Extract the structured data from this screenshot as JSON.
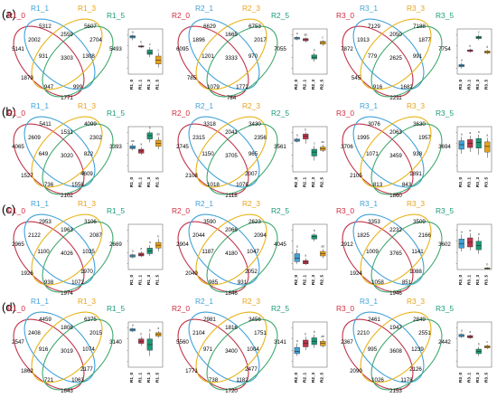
{
  "colors": {
    "set_a": "#d12a3e",
    "set_b": "#3fa1d8",
    "set_c": "#e8a319",
    "set_d": "#1b9a78",
    "ellipse_a": "#c0334a",
    "ellipse_b": "#3fa1d8",
    "ellipse_c": "#e8b318",
    "ellipse_d": "#41a86f",
    "box_palette": [
      "#3fa1d8",
      "#c0334a",
      "#1b9a78",
      "#e8a319"
    ]
  },
  "rows": [
    {
      "label": "(a)",
      "panels": [
        {
          "sets": [
            "R1_0",
            "R1_1",
            "R1_3",
            "R1_5"
          ],
          "counts": {
            "a": "5141",
            "b": "5312",
            "c": "5607",
            "d": "5493",
            "ab": "2002",
            "bc": "2559",
            "cd": "1308",
            "ad": "1879",
            "abc": "931",
            "bcd": "2704",
            "abd": "947",
            "acd": "999",
            "abcd": "3303",
            "ac": "3303",
            "bd": "1771"
          },
          "mid_counts": [
            "2002",
            "2559",
            "2704",
            "931",
            "3303",
            "1308",
            "1879",
            "947",
            "999",
            "1771"
          ],
          "boxplot": {
            "categories": [
              "R1_0",
              "R1_1",
              "R1_3",
              "R1_5"
            ],
            "letters": [
              "a",
              "b",
              "c",
              "c"
            ],
            "boxes": [
              {
                "min": 0.8,
                "q1": 0.84,
                "median": 0.86,
                "q3": 0.88,
                "max": 0.9
              },
              {
                "min": 0.66,
                "q1": 0.68,
                "median": 0.69,
                "q3": 0.7,
                "max": 0.72
              },
              {
                "min": 0.5,
                "q1": 0.55,
                "median": 0.58,
                "q3": 0.63,
                "max": 0.68
              },
              {
                "min": 0.32,
                "q1": 0.38,
                "median": 0.45,
                "q3": 0.52,
                "max": 0.58
              }
            ]
          }
        },
        {
          "sets": [
            "R2_0",
            "R2_1",
            "R2_3",
            "R2_5"
          ],
          "mid_counts": [
            "1896",
            "1665",
            "2017",
            "1201",
            "3333",
            "970",
            "785",
            "1079",
            "1772",
            "784"
          ],
          "outer_counts": [
            "6095",
            "6629",
            "6753",
            "7055"
          ],
          "boxplot": {
            "categories": [
              "R2_0",
              "R2_1",
              "R2_3",
              "R2_5"
            ],
            "letters": [
              "a",
              "ab",
              "b",
              "c"
            ],
            "boxes": [
              {
                "min": 0.8,
                "q1": 0.82,
                "median": 0.84,
                "q3": 0.85,
                "max": 0.87
              },
              {
                "min": 0.76,
                "q1": 0.79,
                "median": 0.81,
                "q3": 0.83,
                "max": 0.85
              },
              {
                "min": 0.42,
                "q1": 0.47,
                "median": 0.5,
                "q3": 0.54,
                "max": 0.58
              },
              {
                "min": 0.7,
                "q1": 0.73,
                "median": 0.76,
                "q3": 0.78,
                "max": 0.8
              }
            ]
          }
        },
        {
          "sets": [
            "R3_0",
            "R3_1",
            "R3_3",
            "R3_5"
          ],
          "mid_counts": [
            "1913",
            "2050",
            "1877",
            "779",
            "2625",
            "991",
            "545",
            "916",
            "1682",
            "2211"
          ],
          "outer_counts": [
            "7872",
            "7129",
            "7188",
            "7754"
          ],
          "boxplot": {
            "categories": [
              "R3_0",
              "R3_1",
              "R3_3",
              "R3_5"
            ],
            "letters": [
              "a",
              "b",
              "c",
              "d"
            ],
            "boxes": [
              {
                "min": 0.3,
                "q1": 0.33,
                "median": 0.35,
                "q3": 0.37,
                "max": 0.4
              },
              {
                "min": 0.58,
                "q1": 0.6,
                "median": 0.62,
                "q3": 0.63,
                "max": 0.65
              },
              {
                "min": 0.8,
                "q1": 0.83,
                "median": 0.85,
                "q3": 0.87,
                "max": 0.9
              },
              {
                "min": 0.55,
                "q1": 0.57,
                "median": 0.59,
                "q3": 0.61,
                "max": 0.63
              }
            ]
          }
        }
      ]
    },
    {
      "label": "(b)",
      "panels": [
        {
          "sets": [
            "R1_0",
            "R1_1",
            "R1_3",
            "R1_5"
          ],
          "mid_counts": [
            "2609",
            "1531",
            "2302",
            "649",
            "3020",
            "822",
            "1527",
            "736",
            "1558",
            "2102"
          ],
          "outer_counts": [
            "4065",
            "5411",
            "4099",
            "3393"
          ],
          "center_extra": [
            "4609"
          ],
          "boxplot": {
            "categories": [
              "R1_0",
              "R1_1",
              "R1_3",
              "R1_5"
            ],
            "letters": [
              "ab",
              "a",
              "b",
              "ab"
            ],
            "boxes": [
              {
                "min": 0.58,
                "q1": 0.61,
                "median": 0.63,
                "q3": 0.66,
                "max": 0.7
              },
              {
                "min": 0.5,
                "q1": 0.53,
                "median": 0.57,
                "q3": 0.6,
                "max": 0.64
              },
              {
                "min": 0.72,
                "q1": 0.78,
                "median": 0.84,
                "q3": 0.89,
                "max": 0.93
              },
              {
                "min": 0.6,
                "q1": 0.65,
                "median": 0.7,
                "q3": 0.76,
                "max": 0.82
              }
            ]
          }
        },
        {
          "sets": [
            "R2_0",
            "R2_1",
            "R2_3",
            "R2_5"
          ],
          "mid_counts": [
            "2315",
            "2041",
            "2356",
            "1150",
            "3705",
            "965",
            "2108",
            "1018",
            "1078",
            "2118"
          ],
          "outer_counts": [
            "2745",
            "3318",
            "3430",
            "3561"
          ],
          "center_extra": [
            "2007"
          ],
          "boxplot": {
            "categories": [
              "R2_0",
              "R2_1",
              "R2_3",
              "R2_5"
            ],
            "letters": [
              "a",
              "b",
              "c",
              "ac"
            ],
            "boxes": [
              {
                "min": 0.72,
                "q1": 0.74,
                "median": 0.76,
                "q3": 0.78,
                "max": 0.8
              },
              {
                "min": 0.7,
                "q1": 0.78,
                "median": 0.83,
                "q3": 0.87,
                "max": 0.9
              },
              {
                "min": 0.4,
                "q1": 0.48,
                "median": 0.55,
                "q3": 0.6,
                "max": 0.66
              },
              {
                "min": 0.55,
                "q1": 0.58,
                "median": 0.61,
                "q3": 0.64,
                "max": 0.68
              }
            ]
          }
        },
        {
          "sets": [
            "R3_0",
            "R3_1",
            "R3_3",
            "R3_5"
          ],
          "mid_counts": [
            "1995",
            "2063",
            "1957",
            "1071",
            "3459",
            "938",
            "2105",
            "813",
            "843",
            "1860"
          ],
          "outer_counts": [
            "3706",
            "3076",
            "3630",
            "3694"
          ],
          "center_extra": [
            "1891"
          ],
          "boxplot": {
            "categories": [
              "R3_0",
              "R3_1",
              "R3_3",
              "R3_5"
            ],
            "letters": [
              "a",
              "a",
              "a",
              "a"
            ],
            "boxes": [
              {
                "min": 0.52,
                "q1": 0.6,
                "median": 0.68,
                "q3": 0.75,
                "max": 0.82
              },
              {
                "min": 0.55,
                "q1": 0.63,
                "median": 0.7,
                "q3": 0.77,
                "max": 0.84
              },
              {
                "min": 0.5,
                "q1": 0.62,
                "median": 0.72,
                "q3": 0.79,
                "max": 0.86
              },
              {
                "min": 0.45,
                "q1": 0.55,
                "median": 0.65,
                "q3": 0.73,
                "max": 0.8
              }
            ]
          }
        }
      ]
    },
    {
      "label": "(c)",
      "panels": [
        {
          "sets": [
            "R1_0",
            "R1_1",
            "R1_3",
            "R1_5"
          ],
          "mid_counts": [
            "2122",
            "1963",
            "2087",
            "1100",
            "4026",
            "1025",
            "1926",
            "938",
            "1072",
            "1974"
          ],
          "outer_counts": [
            "2965",
            "2953",
            "3106",
            "2669"
          ],
          "center_extra": [
            "1970"
          ],
          "boxplot": {
            "categories": [
              "R1_0",
              "R1_1",
              "R1_3",
              "R1_5"
            ],
            "letters": [
              "a",
              "a",
              "a",
              "b"
            ],
            "boxes": [
              {
                "min": 0.4,
                "q1": 0.42,
                "median": 0.44,
                "q3": 0.46,
                "max": 0.48
              },
              {
                "min": 0.42,
                "q1": 0.44,
                "median": 0.46,
                "q3": 0.49,
                "max": 0.52
              },
              {
                "min": 0.44,
                "q1": 0.48,
                "median": 0.53,
                "q3": 0.58,
                "max": 0.63
              },
              {
                "min": 0.52,
                "q1": 0.58,
                "median": 0.63,
                "q3": 0.68,
                "max": 0.74
              }
            ]
          }
        },
        {
          "sets": [
            "R2_0",
            "R2_1",
            "R2_3",
            "R2_5"
          ],
          "mid_counts": [
            "2044",
            "2066",
            "2094",
            "1187",
            "4180",
            "1047",
            "2049",
            "985",
            "931",
            "1846"
          ],
          "outer_counts": [
            "2904",
            "3590",
            "2623",
            "4045"
          ],
          "center_extra": [
            "2052"
          ],
          "boxplot": {
            "categories": [
              "R2_0",
              "R2_1",
              "R2_3",
              "R2_5"
            ],
            "letters": [
              "a",
              "a",
              "b",
              "ab"
            ],
            "boxes": [
              {
                "min": 0.3,
                "q1": 0.34,
                "median": 0.4,
                "q3": 0.48,
                "max": 0.56
              },
              {
                "min": 0.28,
                "q1": 0.3,
                "median": 0.33,
                "q3": 0.36,
                "max": 0.4
              },
              {
                "min": 0.7,
                "q1": 0.74,
                "median": 0.78,
                "q3": 0.81,
                "max": 0.84
              },
              {
                "min": 0.4,
                "q1": 0.44,
                "median": 0.48,
                "q3": 0.52,
                "max": 0.56
              }
            ]
          }
        },
        {
          "sets": [
            "R3_0",
            "R3_1",
            "R3_3",
            "R3_5"
          ],
          "mid_counts": [
            "1825",
            "2232",
            "2166",
            "1009",
            "3765",
            "1141",
            "1924",
            "1058",
            "851",
            "1946"
          ],
          "outer_counts": [
            "2912",
            "3353",
            "3509",
            "3602"
          ],
          "center_extra": [
            "1088"
          ],
          "boxplot": {
            "categories": [
              "R3_0",
              "R3_1",
              "R3_3",
              "R3_5"
            ],
            "letters": [
              "a",
              "a",
              "a",
              "b"
            ],
            "boxes": [
              {
                "min": 0.52,
                "q1": 0.58,
                "median": 0.66,
                "q3": 0.74,
                "max": 0.82
              },
              {
                "min": 0.54,
                "q1": 0.6,
                "median": 0.68,
                "q3": 0.76,
                "max": 0.84
              },
              {
                "min": 0.48,
                "q1": 0.55,
                "median": 0.62,
                "q3": 0.7,
                "max": 0.78
              },
              {
                "min": 0.2,
                "q1": 0.21,
                "median": 0.22,
                "q3": 0.23,
                "max": 0.24
              }
            ]
          }
        }
      ]
    },
    {
      "label": "(d)",
      "panels": [
        {
          "sets": [
            "R1_0",
            "R1_1",
            "R1_3",
            "R1_5"
          ],
          "mid_counts": [
            "2408",
            "1808",
            "2015",
            "916",
            "3019",
            "1074",
            "1862",
            "721",
            "1063",
            "1643"
          ],
          "outer_counts": [
            "2547",
            "4459",
            "6375",
            "3140"
          ],
          "center_extra": [
            "2177"
          ],
          "boxplot": {
            "categories": [
              "R1_0",
              "R1_1",
              "R1_3",
              "R1_5"
            ],
            "letters": [
              "a",
              "b",
              "b",
              "a"
            ],
            "boxes": [
              {
                "min": 0.82,
                "q1": 0.84,
                "median": 0.86,
                "q3": 0.88,
                "max": 0.9
              },
              {
                "min": 0.58,
                "q1": 0.62,
                "median": 0.66,
                "q3": 0.7,
                "max": 0.74
              },
              {
                "min": 0.4,
                "q1": 0.5,
                "median": 0.6,
                "q3": 0.7,
                "max": 0.8
              },
              {
                "min": 0.72,
                "q1": 0.75,
                "median": 0.78,
                "q3": 0.81,
                "max": 0.84
              }
            ]
          }
        },
        {
          "sets": [
            "R2_0",
            "R2_1",
            "R2_3",
            "R2_5"
          ],
          "mid_counts": [
            "2104",
            "1816",
            "1751",
            "971",
            "3400",
            "1004",
            "1771",
            "738",
            "1182",
            "1720"
          ],
          "outer_counts": [
            "5560",
            "2981",
            "3456",
            "3141"
          ],
          "center_extra": [
            "2477"
          ],
          "boxplot": {
            "categories": [
              "R2_0",
              "R2_1",
              "R2_3",
              "R2_5"
            ],
            "letters": [
              "a",
              "b",
              "b",
              "ab"
            ],
            "boxes": [
              {
                "min": 0.4,
                "q1": 0.44,
                "median": 0.48,
                "q3": 0.55,
                "max": 0.62
              },
              {
                "min": 0.5,
                "q1": 0.56,
                "median": 0.62,
                "q3": 0.68,
                "max": 0.74
              },
              {
                "min": 0.54,
                "q1": 0.6,
                "median": 0.66,
                "q3": 0.72,
                "max": 0.78
              },
              {
                "min": 0.55,
                "q1": 0.58,
                "median": 0.62,
                "q3": 0.66,
                "max": 0.7
              }
            ]
          }
        },
        {
          "sets": [
            "R3_0",
            "R3_1",
            "R3_3",
            "R3_5"
          ],
          "mid_counts": [
            "2210",
            "1947",
            "2551",
            "995",
            "3608",
            "1239",
            "2090",
            "1026",
            "1178",
            "2153"
          ],
          "outer_counts": [
            "2367",
            "2461",
            "2849",
            "2442"
          ],
          "center_extra": [
            "2126"
          ],
          "boxplot": {
            "categories": [
              "R3_0",
              "R3_1",
              "R3_3",
              "R3_5"
            ],
            "letters": [
              "a",
              "a",
              "b",
              "c"
            ],
            "boxes": [
              {
                "min": 0.72,
                "q1": 0.74,
                "median": 0.76,
                "q3": 0.78,
                "max": 0.8
              },
              {
                "min": 0.7,
                "q1": 0.72,
                "median": 0.74,
                "q3": 0.76,
                "max": 0.78
              },
              {
                "min": 0.4,
                "q1": 0.44,
                "median": 0.48,
                "q3": 0.52,
                "max": 0.56
              },
              {
                "min": 0.52,
                "q1": 0.54,
                "median": 0.56,
                "q3": 0.58,
                "max": 0.6
              }
            ]
          }
        }
      ]
    }
  ]
}
